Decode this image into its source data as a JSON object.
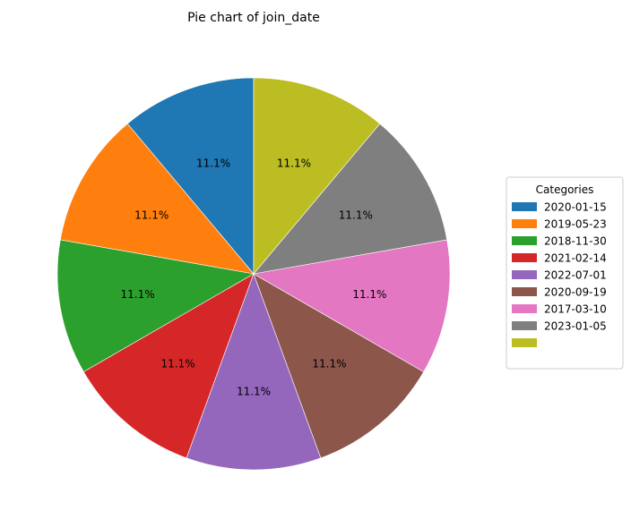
{
  "chart_data": {
    "type": "pie",
    "title": "Pie chart of join_date",
    "start_angle_deg": 90,
    "direction": "counterclockwise",
    "slices": [
      {
        "label": "2020-01-15",
        "value": 11.1,
        "display": "11.1%",
        "color": "#1f77b4"
      },
      {
        "label": "2019-05-23",
        "value": 11.1,
        "display": "11.1%",
        "color": "#ff7f0e"
      },
      {
        "label": "2018-11-30",
        "value": 11.1,
        "display": "11.1%",
        "color": "#2ca02c"
      },
      {
        "label": "2021-02-14",
        "value": 11.1,
        "display": "11.1%",
        "color": "#d62728"
      },
      {
        "label": "2022-07-01",
        "value": 11.1,
        "display": "11.1%",
        "color": "#9467bd"
      },
      {
        "label": "2020-09-19",
        "value": 11.1,
        "display": "11.1%",
        "color": "#8c564b"
      },
      {
        "label": "2017-03-10",
        "value": 11.1,
        "display": "11.1%",
        "color": "#e377c2"
      },
      {
        "label": "2023-01-05",
        "value": 11.1,
        "display": "11.1%",
        "color": "#7f7f7f"
      },
      {
        "label": "",
        "value": 11.1,
        "display": "11.1%",
        "color": "#bcbd22"
      }
    ],
    "legend": {
      "title": "Categories",
      "placement": "right"
    }
  }
}
